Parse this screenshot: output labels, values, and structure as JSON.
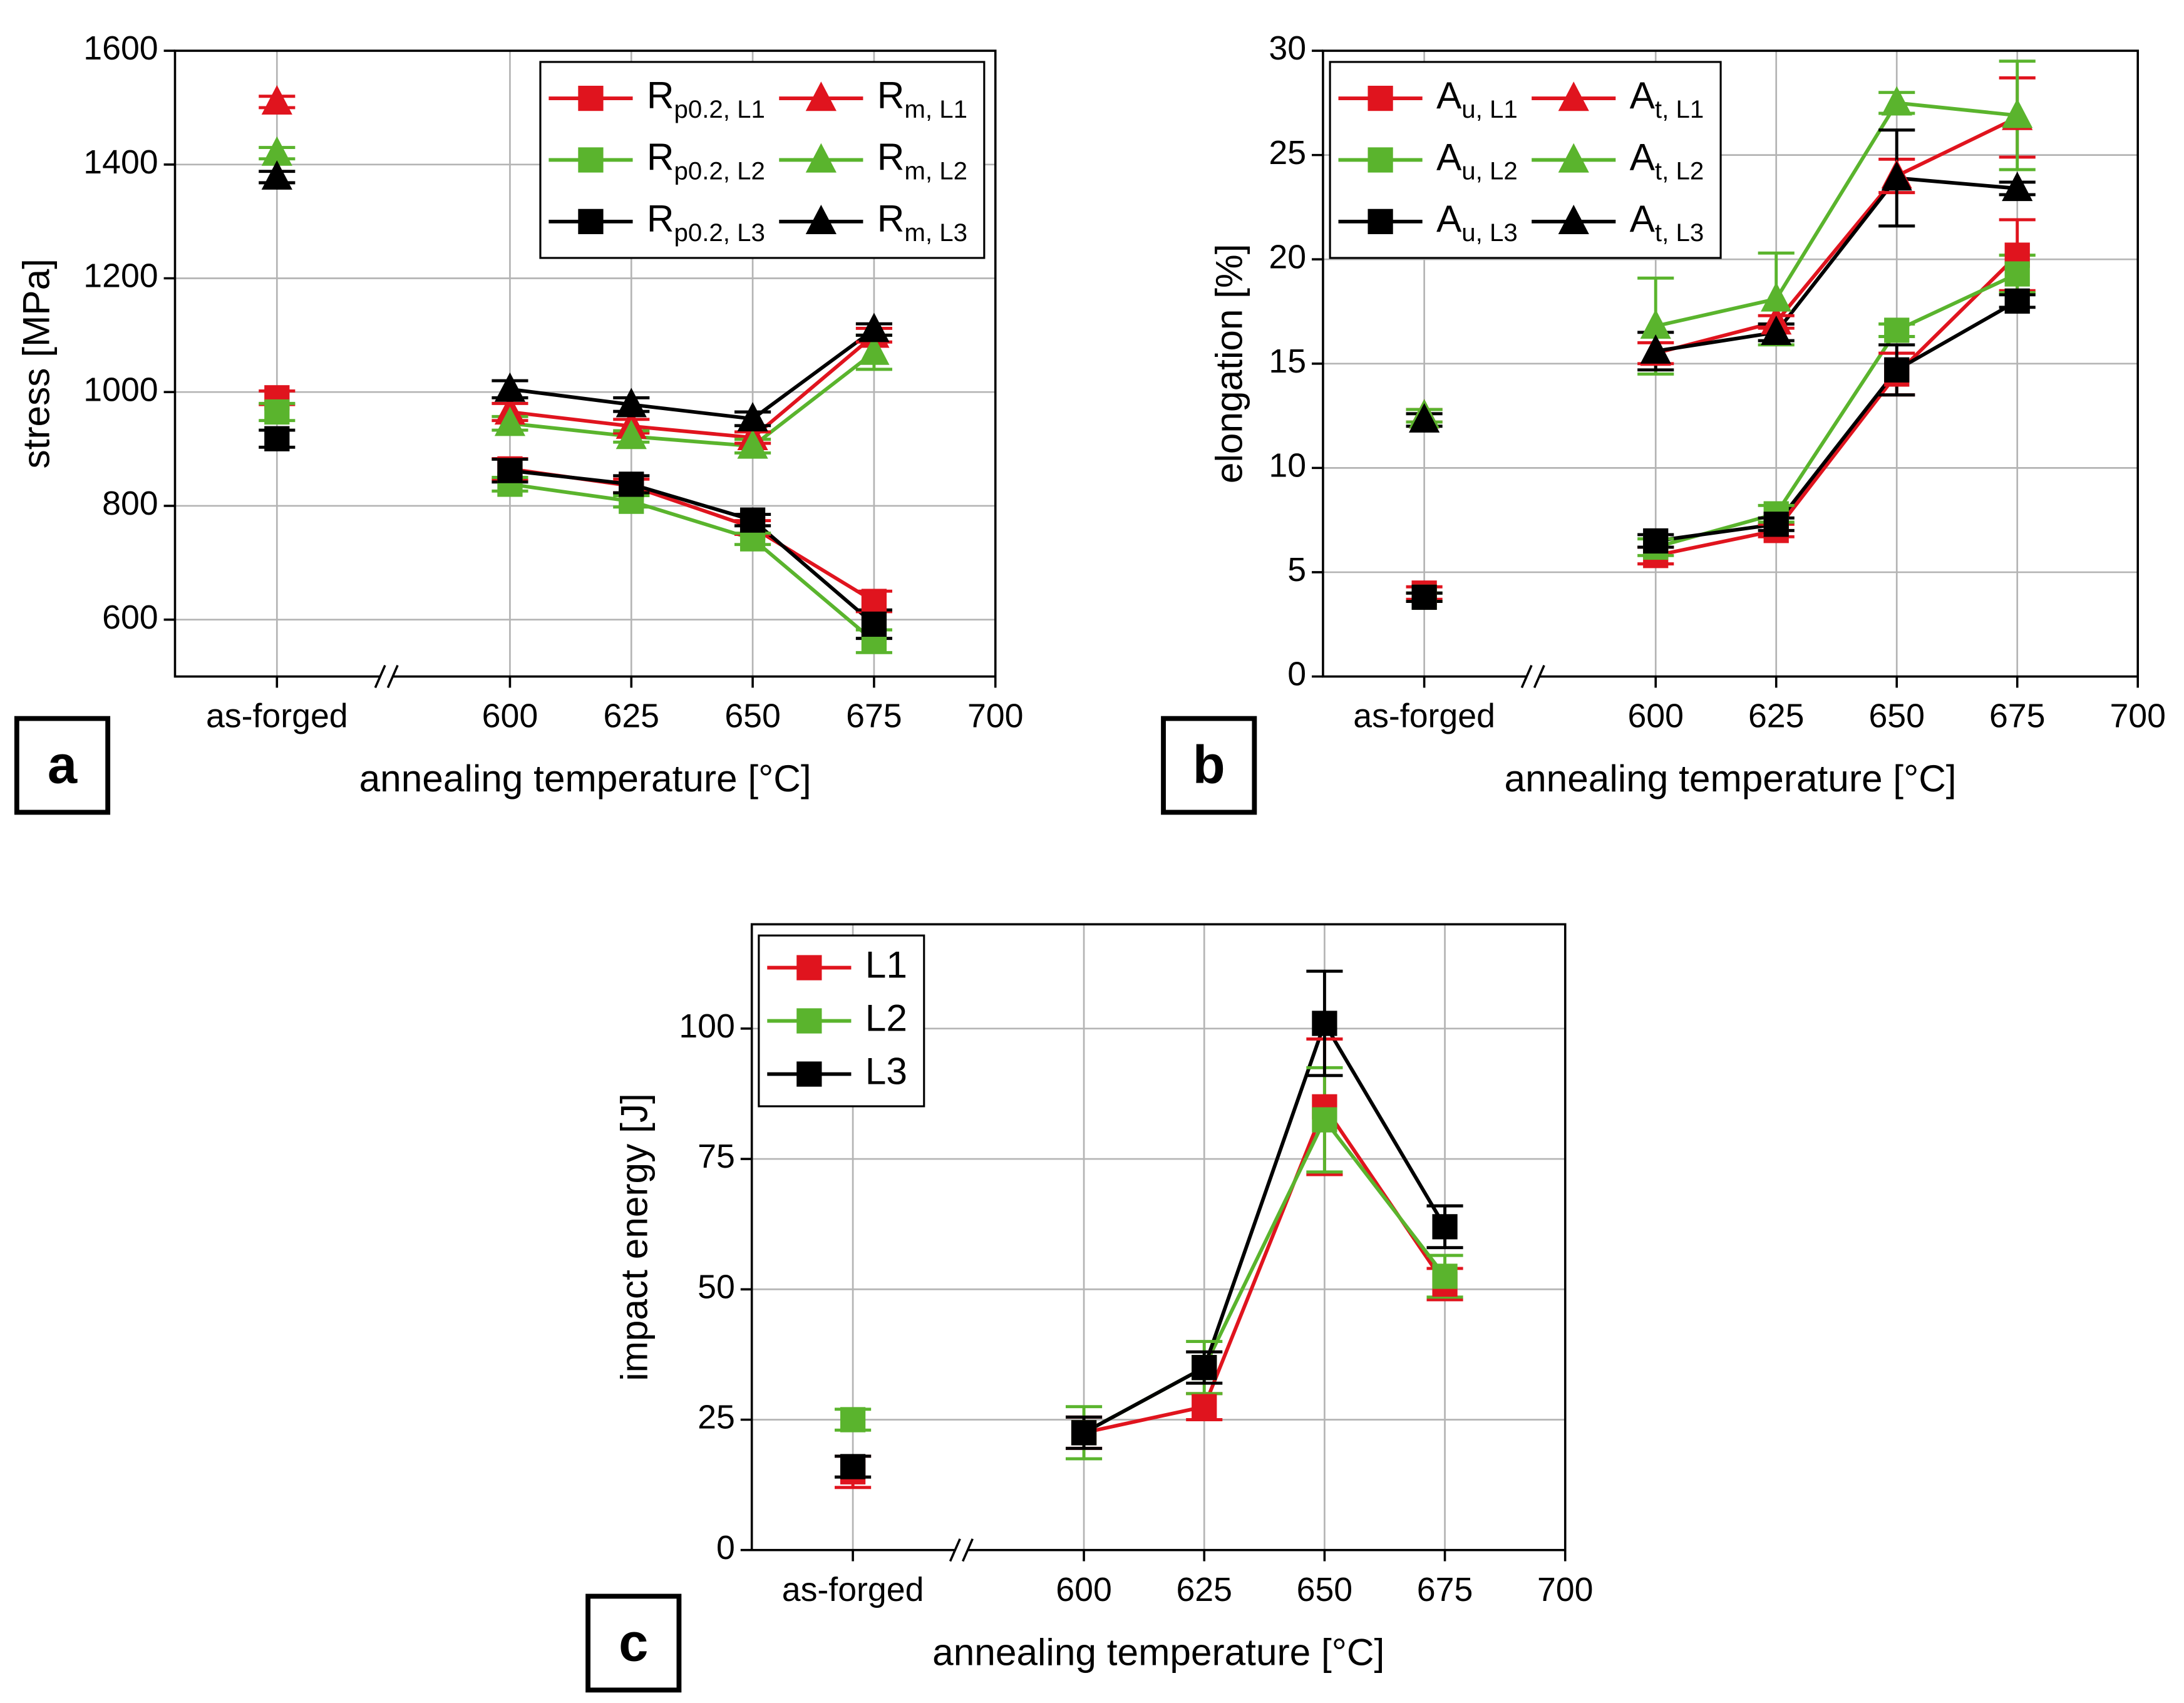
{
  "chart_data": [
    {
      "type": "line",
      "panel_label": "a",
      "xlabel": "annealing temperature [°C]",
      "ylabel": "stress [MPa]",
      "x": [
        552,
        null,
        600,
        625,
        650,
        675
      ],
      "xlim": [
        531,
        700
      ],
      "xticks": [
        {
          "value": 552,
          "label": "as-forged"
        },
        600,
        625,
        650,
        675,
        700
      ],
      "ylim": [
        500,
        1600
      ],
      "yticks": [
        600,
        800,
        1000,
        1200,
        1400,
        1600
      ],
      "grid": true,
      "axis_break": true,
      "legend": "upper right",
      "legend_columns": 2,
      "legend_subscript": true,
      "series": [
        {
          "name": "Rp0.2, L1",
          "color": "#e0141e",
          "marker": "square",
          "values": [
            990,
            null,
            865,
            835,
            762,
            632
          ],
          "errors": [
            12,
            null,
            18,
            12,
            12,
            18
          ]
        },
        {
          "name": "Rp0.2, L2",
          "color": "#5ab42d",
          "marker": "square",
          "values": [
            965,
            null,
            838,
            808,
            742,
            562
          ],
          "errors": [
            15,
            null,
            12,
            10,
            10,
            20
          ]
        },
        {
          "name": "Rp0.2, L3",
          "color": "#000000",
          "marker": "square",
          "values": [
            918,
            null,
            862,
            838,
            775,
            592
          ],
          "errors": [
            15,
            null,
            20,
            15,
            10,
            25
          ]
        },
        {
          "name": "Rm, L1",
          "color": "#e0141e",
          "marker": "triangle",
          "values": [
            1510,
            null,
            965,
            940,
            920,
            1100
          ],
          "errors": [
            10,
            null,
            15,
            12,
            10,
            12
          ]
        },
        {
          "name": "Rm, L2",
          "color": "#5ab42d",
          "marker": "triangle",
          "values": [
            1420,
            null,
            945,
            922,
            905,
            1070
          ],
          "errors": [
            10,
            null,
            12,
            10,
            12,
            30
          ]
        },
        {
          "name": "Rm, L3",
          "color": "#000000",
          "marker": "triangle",
          "values": [
            1378,
            null,
            1005,
            978,
            953,
            1110
          ],
          "errors": [
            10,
            null,
            15,
            12,
            12,
            10
          ]
        }
      ]
    },
    {
      "type": "line",
      "panel_label": "b",
      "xlabel": "annealing temperature [°C]",
      "ylabel": "elongation [%]",
      "x": [
        552,
        null,
        600,
        625,
        650,
        675
      ],
      "xlim": [
        531,
        700
      ],
      "xticks": [
        {
          "value": 552,
          "label": "as-forged"
        },
        600,
        625,
        650,
        675,
        700
      ],
      "ylim": [
        0,
        30
      ],
      "yticks": [
        0,
        5,
        10,
        15,
        20,
        25,
        30
      ],
      "grid": true,
      "axis_break": true,
      "legend": "upper left",
      "legend_columns": 2,
      "legend_subscript": true,
      "series": [
        {
          "name": "Au, L1",
          "color": "#e0141e",
          "marker": "square",
          "values": [
            4.0,
            null,
            5.8,
            7.0,
            14.5,
            20.2
          ],
          "errors": [
            0.3,
            null,
            0.4,
            0.3,
            1.0,
            1.7
          ]
        },
        {
          "name": "Au, L2",
          "color": "#5ab42d",
          "marker": "square",
          "values": [
            3.8,
            null,
            6.2,
            7.8,
            16.6,
            19.3
          ],
          "errors": [
            0.2,
            null,
            0.4,
            0.4,
            0.3,
            0.9
          ]
        },
        {
          "name": "Au, L3",
          "color": "#000000",
          "marker": "square",
          "values": [
            3.8,
            null,
            6.5,
            7.3,
            14.7,
            18.0
          ],
          "errors": [
            0.2,
            null,
            0.3,
            0.3,
            1.2,
            0.3
          ]
        },
        {
          "name": "At, L1",
          "color": "#e0141e",
          "marker": "triangle",
          "values": [
            12.5,
            null,
            15.5,
            17.0,
            24.0,
            26.8
          ],
          "errors": [
            0.3,
            null,
            0.5,
            0.3,
            0.8,
            1.9
          ]
        },
        {
          "name": "At, L2",
          "color": "#5ab42d",
          "marker": "triangle",
          "values": [
            12.5,
            null,
            16.8,
            18.1,
            27.5,
            26.9
          ],
          "errors": [
            0.3,
            null,
            2.3,
            2.2,
            0.5,
            2.6
          ]
        },
        {
          "name": "At, L3",
          "color": "#000000",
          "marker": "triangle",
          "values": [
            12.3,
            null,
            15.6,
            16.5,
            23.9,
            23.4
          ],
          "errors": [
            0.3,
            null,
            0.9,
            0.4,
            2.3,
            0.3
          ]
        }
      ]
    },
    {
      "type": "line",
      "panel_label": "c",
      "xlabel": "annealing temperature [°C]",
      "ylabel": "impact energy [J]",
      "x": [
        552,
        null,
        600,
        625,
        650,
        675
      ],
      "xlim": [
        531,
        700
      ],
      "xticks": [
        {
          "value": 552,
          "label": "as-forged"
        },
        600,
        625,
        650,
        675,
        700
      ],
      "ylim": [
        0,
        120
      ],
      "yticks": [
        0,
        25,
        50,
        75,
        100
      ],
      "grid": true,
      "axis_break": true,
      "legend": "upper left",
      "legend_columns": 1,
      "legend_subscript": false,
      "series": [
        {
          "name": "L1",
          "color": "#e0141e",
          "marker": "square",
          "values": [
            15,
            null,
            22.5,
            27.5,
            85,
            51
          ],
          "errors": [
            3,
            null,
            3,
            2.5,
            13,
            3
          ]
        },
        {
          "name": "L2",
          "color": "#5ab42d",
          "marker": "square",
          "values": [
            25,
            null,
            22.5,
            35,
            82.5,
            52.5
          ],
          "errors": [
            2,
            null,
            5,
            5,
            10,
            4
          ]
        },
        {
          "name": "L3",
          "color": "#000000",
          "marker": "square",
          "values": [
            16,
            null,
            22.5,
            35,
            101,
            62
          ],
          "errors": [
            2,
            null,
            3,
            3,
            10,
            4
          ]
        }
      ]
    }
  ]
}
